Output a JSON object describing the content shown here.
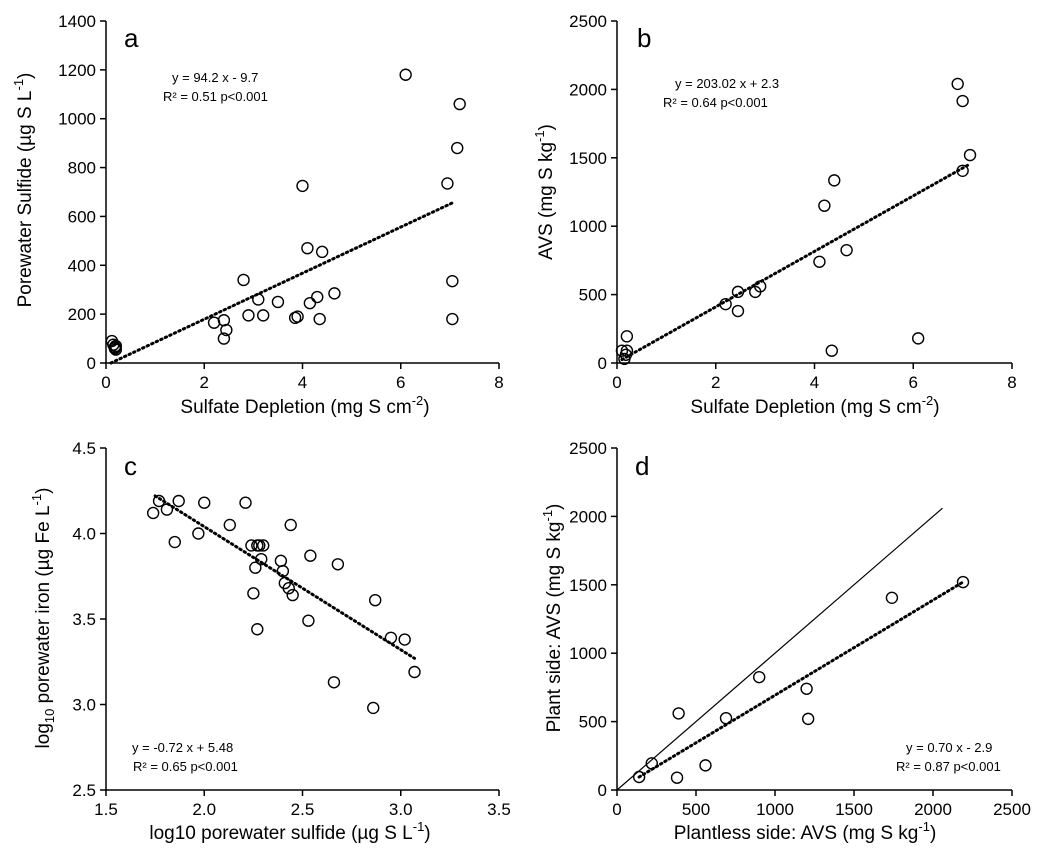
{
  "chart_data": [
    {
      "type": "scatter",
      "panel_label": "a",
      "xlabel": "Sulfate Depletion (mg S cm",
      "xlabel_sup": "-2",
      "xlabel_tail": ")",
      "ylabel": "Porewater Sulfide (µg S L",
      "ylabel_sup": "-1",
      "ylabel_tail": ")",
      "xlim": [
        0,
        8
      ],
      "ylim": [
        0,
        1400
      ],
      "xticks": [
        "0",
        "2",
        "4",
        "6",
        "8"
      ],
      "yticks": [
        "0",
        "200",
        "400",
        "600",
        "800",
        "1000",
        "1200",
        "1400"
      ],
      "annotation": [
        "y = 94.2 x - 9.7",
        "R² = 0.51 p<0.001"
      ],
      "trendline": {
        "style": "dotted",
        "x": [
          0.1,
          7.1
        ],
        "y": [
          0,
          660
        ]
      },
      "points": {
        "x": [
          0.12,
          0.15,
          0.18,
          0.2,
          0.2,
          0.18,
          2.2,
          2.4,
          2.45,
          2.4,
          2.8,
          2.9,
          3.1,
          3.2,
          3.5,
          3.85,
          3.9,
          4.0,
          4.1,
          4.15,
          4.3,
          4.35,
          4.4,
          4.65,
          6.1,
          6.95,
          7.05,
          7.05,
          7.15,
          7.2
        ],
        "y": [
          90,
          75,
          60,
          70,
          55,
          65,
          165,
          175,
          135,
          100,
          340,
          195,
          260,
          195,
          250,
          185,
          190,
          725,
          470,
          245,
          270,
          180,
          455,
          285,
          1180,
          735,
          335,
          180,
          880,
          1060
        ]
      }
    },
    {
      "type": "scatter",
      "panel_label": "b",
      "xlabel": "Sulfate Depletion (mg S cm",
      "xlabel_sup": "-2",
      "xlabel_tail": ")",
      "ylabel": "AVS (mg S kg",
      "ylabel_sup": "-1",
      "ylabel_tail": ")",
      "xlim": [
        0,
        8
      ],
      "ylim": [
        0,
        2500
      ],
      "xticks": [
        "0",
        "2",
        "4",
        "6",
        "8"
      ],
      "yticks": [
        "0",
        "500",
        "1000",
        "1500",
        "2000",
        "2500"
      ],
      "annotation": [
        "y = 203.02 x + 2.3",
        "R² = 0.64 p<0.001"
      ],
      "trendline": {
        "style": "dotted",
        "x": [
          0.1,
          7.1
        ],
        "y": [
          25,
          1445
        ]
      },
      "points": {
        "x": [
          0.1,
          0.15,
          0.2,
          0.2,
          0.18,
          2.2,
          2.45,
          2.45,
          2.8,
          2.9,
          4.1,
          4.2,
          4.35,
          4.4,
          4.65,
          6.1,
          6.9,
          7.0,
          7.0,
          7.15
        ],
        "y": [
          90,
          30,
          195,
          90,
          60,
          430,
          520,
          380,
          520,
          560,
          740,
          1150,
          90,
          1335,
          825,
          180,
          2040,
          1915,
          1405,
          1520
        ]
      }
    },
    {
      "type": "scatter",
      "panel_label": "c",
      "xlabel": "log10 porewater sulfide (µg S L",
      "xlabel_sup": "-1",
      "xlabel_tail": ")",
      "ylabel": "log",
      "ylabel_sub": "10",
      "ylabel_mid": " porewater iron (µg Fe L",
      "ylabel_sup": "-1",
      "ylabel_tail": ")",
      "xlim": [
        1.5,
        3.5
      ],
      "ylim": [
        2.5,
        4.5
      ],
      "xticks": [
        "1.5",
        "2.0",
        "2.5",
        "3.0",
        "3.5"
      ],
      "yticks": [
        "2.5",
        "3.0",
        "3.5",
        "4.0",
        "4.5"
      ],
      "annotation": [
        "y = -0.72 x + 5.48",
        "R² = 0.65 p<0.001"
      ],
      "trendline": {
        "style": "dotted",
        "x": [
          1.75,
          3.07
        ],
        "y": [
          4.22,
          3.27
        ]
      },
      "points": {
        "x": [
          1.74,
          1.77,
          1.81,
          1.85,
          1.87,
          1.97,
          2.0,
          2.13,
          2.21,
          2.24,
          2.25,
          2.26,
          2.27,
          2.27,
          2.28,
          2.29,
          2.3,
          2.39,
          2.4,
          2.41,
          2.43,
          2.44,
          2.45,
          2.53,
          2.54,
          2.66,
          2.68,
          2.86,
          2.87,
          2.95,
          3.02,
          3.07
        ],
        "y": [
          4.12,
          4.19,
          4.14,
          3.95,
          4.19,
          4.0,
          4.18,
          4.05,
          4.18,
          3.93,
          3.65,
          3.8,
          3.93,
          3.44,
          3.93,
          3.85,
          3.93,
          3.84,
          3.78,
          3.71,
          3.68,
          4.05,
          3.64,
          3.49,
          3.87,
          3.13,
          3.82,
          2.98,
          3.61,
          3.39,
          3.38,
          3.19
        ]
      }
    },
    {
      "type": "scatter",
      "panel_label": "d",
      "xlabel": "Plantless side: AVS (mg S kg",
      "xlabel_sup": "-1",
      "xlabel_tail": ")",
      "ylabel": "Plant side: AVS (mg S kg",
      "ylabel_sup": "-1",
      "ylabel_tail": ")",
      "xlim": [
        0,
        2500
      ],
      "ylim": [
        0,
        2500
      ],
      "xticks": [
        "0",
        "500",
        "1000",
        "1500",
        "2000",
        "2500"
      ],
      "yticks": [
        "0",
        "500",
        "1000",
        "1500",
        "2000",
        "2500"
      ],
      "annotation": [
        "y = 0.70 x - 2.9",
        "R² = 0.87 p<0.001"
      ],
      "trendline": {
        "style": "dotted",
        "x": [
          140,
          2190
        ],
        "y": [
          95,
          1520
        ]
      },
      "one_to_one_line": {
        "style": "solid",
        "x": [
          0,
          2060
        ],
        "y": [
          0,
          2060
        ]
      },
      "points": {
        "x": [
          140,
          220,
          380,
          390,
          560,
          690,
          900,
          1200,
          1210,
          1740,
          2190
        ],
        "y": [
          95,
          195,
          90,
          560,
          180,
          525,
          825,
          740,
          520,
          1405,
          1520
        ]
      }
    }
  ]
}
